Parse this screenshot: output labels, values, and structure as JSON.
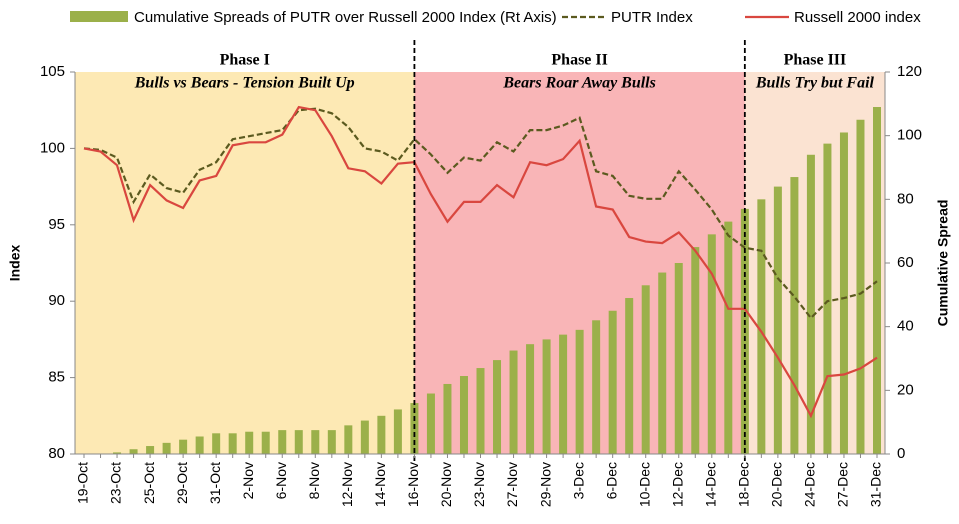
{
  "chart_data": {
    "type": "bar_line",
    "categories": [
      "19-Oct",
      null,
      "23-Oct",
      null,
      "25-Oct",
      null,
      "29-Oct",
      null,
      "31-Oct",
      null,
      "2-Nov",
      null,
      "6-Nov",
      null,
      "8-Nov",
      null,
      "12-Nov",
      null,
      "14-Nov",
      null,
      "16-Nov",
      null,
      "20-Nov",
      null,
      "23-Nov",
      null,
      "27-Nov",
      null,
      "29-Nov",
      null,
      "3-Dec",
      null,
      "6-Dec",
      null,
      "10-Dec",
      null,
      "12-Dec",
      null,
      "14-Dec",
      null,
      "18-Dec",
      null,
      "20-Dec",
      null,
      "24-Dec",
      null,
      "27-Dec",
      null,
      "31-Dec"
    ],
    "series": [
      {
        "name": "Cumulative Spreads of PUTR over Russell 2000 Index (Rt Axis)",
        "kind": "bar",
        "axis": "y2",
        "color": "#9bb04a",
        "values": [
          0,
          0,
          0.5,
          1.5,
          2.5,
          3.5,
          4.5,
          5.5,
          6.5,
          6.5,
          7,
          7,
          7.5,
          7.5,
          7.5,
          7.5,
          9,
          10.5,
          12,
          14,
          16,
          19,
          22,
          24.5,
          27,
          29.5,
          32.5,
          34.5,
          36,
          37.5,
          39,
          42,
          45,
          49,
          53,
          57,
          60,
          65,
          69,
          73,
          77,
          80,
          84,
          87,
          94,
          97.5,
          101,
          105,
          109
        ]
      },
      {
        "name": "PUTR Index",
        "kind": "line",
        "dash": true,
        "color": "#5b5a1f",
        "values": [
          100,
          99.9,
          99.4,
          96.5,
          98.3,
          97.4,
          97.1,
          98.6,
          99.1,
          100.6,
          100.8,
          101,
          101.2,
          102.5,
          102.6,
          102.3,
          101.4,
          100,
          99.8,
          99.2,
          100.6,
          99.6,
          98.4,
          99.4,
          99.2,
          100.4,
          99.8,
          101.2,
          101.2,
          101.5,
          102,
          98.5,
          98.2,
          96.9,
          96.7,
          96.7,
          98.5,
          97.3,
          96,
          94.3,
          93.5,
          93.3,
          91.5,
          90.3,
          88.9,
          90,
          90.2,
          90.5,
          91.3
        ]
      },
      {
        "name": "Russell 2000 index",
        "kind": "line",
        "dash": false,
        "color": "#d9473f",
        "values": [
          100,
          99.8,
          98.9,
          95.3,
          97.6,
          96.6,
          96.1,
          97.9,
          98.2,
          100.2,
          100.4,
          100.4,
          100.9,
          102.7,
          102.5,
          100.8,
          98.7,
          98.5,
          97.7,
          99,
          99.1,
          97,
          95.2,
          96.5,
          96.5,
          97.6,
          96.8,
          99.1,
          98.9,
          99.3,
          100.5,
          96.2,
          96,
          94.2,
          93.9,
          93.8,
          94.5,
          93.3,
          91.8,
          89.5,
          89.5,
          88,
          86.3,
          84.5,
          82.5,
          85.1,
          85.2,
          85.6,
          86.3
        ]
      }
    ],
    "y_label": "Index",
    "y2_label": "Cumulative Spread",
    "ylim": [
      80,
      105
    ],
    "yticks": [
      80,
      85,
      90,
      95,
      100,
      105
    ],
    "y2lim": [
      0,
      120
    ],
    "y2ticks": [
      0,
      20,
      40,
      60,
      80,
      100,
      120
    ],
    "legend": "top",
    "phases": [
      {
        "title": "Phase I",
        "subtitle": "Bulls vs Bears - Tension Built Up",
        "start": "19-Oct",
        "end": "16-Nov",
        "color": "#fde9b4"
      },
      {
        "title": "Phase II",
        "subtitle": "Bears Roar Away Bulls",
        "start": "16-Nov",
        "end": "18-Dec",
        "color": "#f9b5b7"
      },
      {
        "title": "Phase III",
        "subtitle": "Bulls Try but Fail",
        "start": "18-Dec",
        "end": "31-Dec",
        "color": "#fbe3d2"
      }
    ]
  }
}
